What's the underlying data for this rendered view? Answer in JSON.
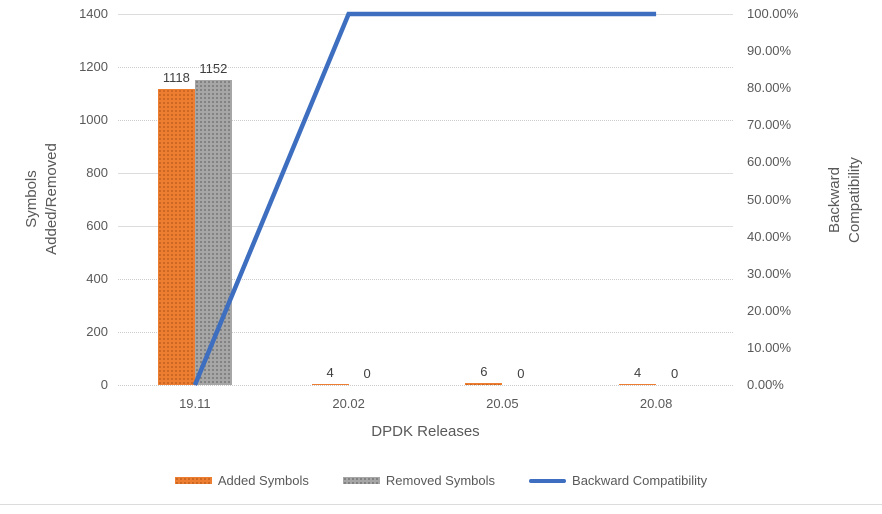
{
  "chart_data": {
    "type": "combo_bar_line",
    "categories": [
      "19.11",
      "20.02",
      "20.05",
      "20.08"
    ],
    "series": [
      {
        "name": "Added Symbols",
        "type": "bar",
        "axis": "left",
        "color": "#ED7D31",
        "values": [
          1118,
          4,
          6,
          4
        ]
      },
      {
        "name": "Removed Symbols",
        "type": "bar",
        "axis": "left",
        "color": "#A6A6A6",
        "values": [
          1152,
          0,
          0,
          0
        ]
      },
      {
        "name": "Backward Compatibility",
        "type": "line",
        "axis": "right",
        "color": "#3D6EBF",
        "values": [
          0,
          100,
          100,
          100
        ]
      }
    ],
    "left_axis": {
      "title_lines": [
        "Symbols",
        "Added/Removed"
      ],
      "min": 0,
      "max": 1400,
      "step": 200,
      "ticks": [
        "0",
        "200",
        "400",
        "600",
        "800",
        "1000",
        "1200",
        "1400"
      ]
    },
    "right_axis": {
      "title_lines": [
        "Backward",
        "Compatibility"
      ],
      "min": 0,
      "max": 100,
      "step": 10,
      "ticks": [
        "0.00%",
        "10.00%",
        "20.00%",
        "30.00%",
        "40.00%",
        "50.00%",
        "60.00%",
        "70.00%",
        "80.00%",
        "90.00%",
        "100.00%"
      ]
    },
    "x_axis": {
      "title": "DPDK Releases"
    },
    "legend": {
      "position": "bottom",
      "entries": [
        "Added Symbols",
        "Removed Symbols",
        "Backward Compatibility"
      ]
    },
    "data_labels_shown": true,
    "grid": "horizontal"
  }
}
